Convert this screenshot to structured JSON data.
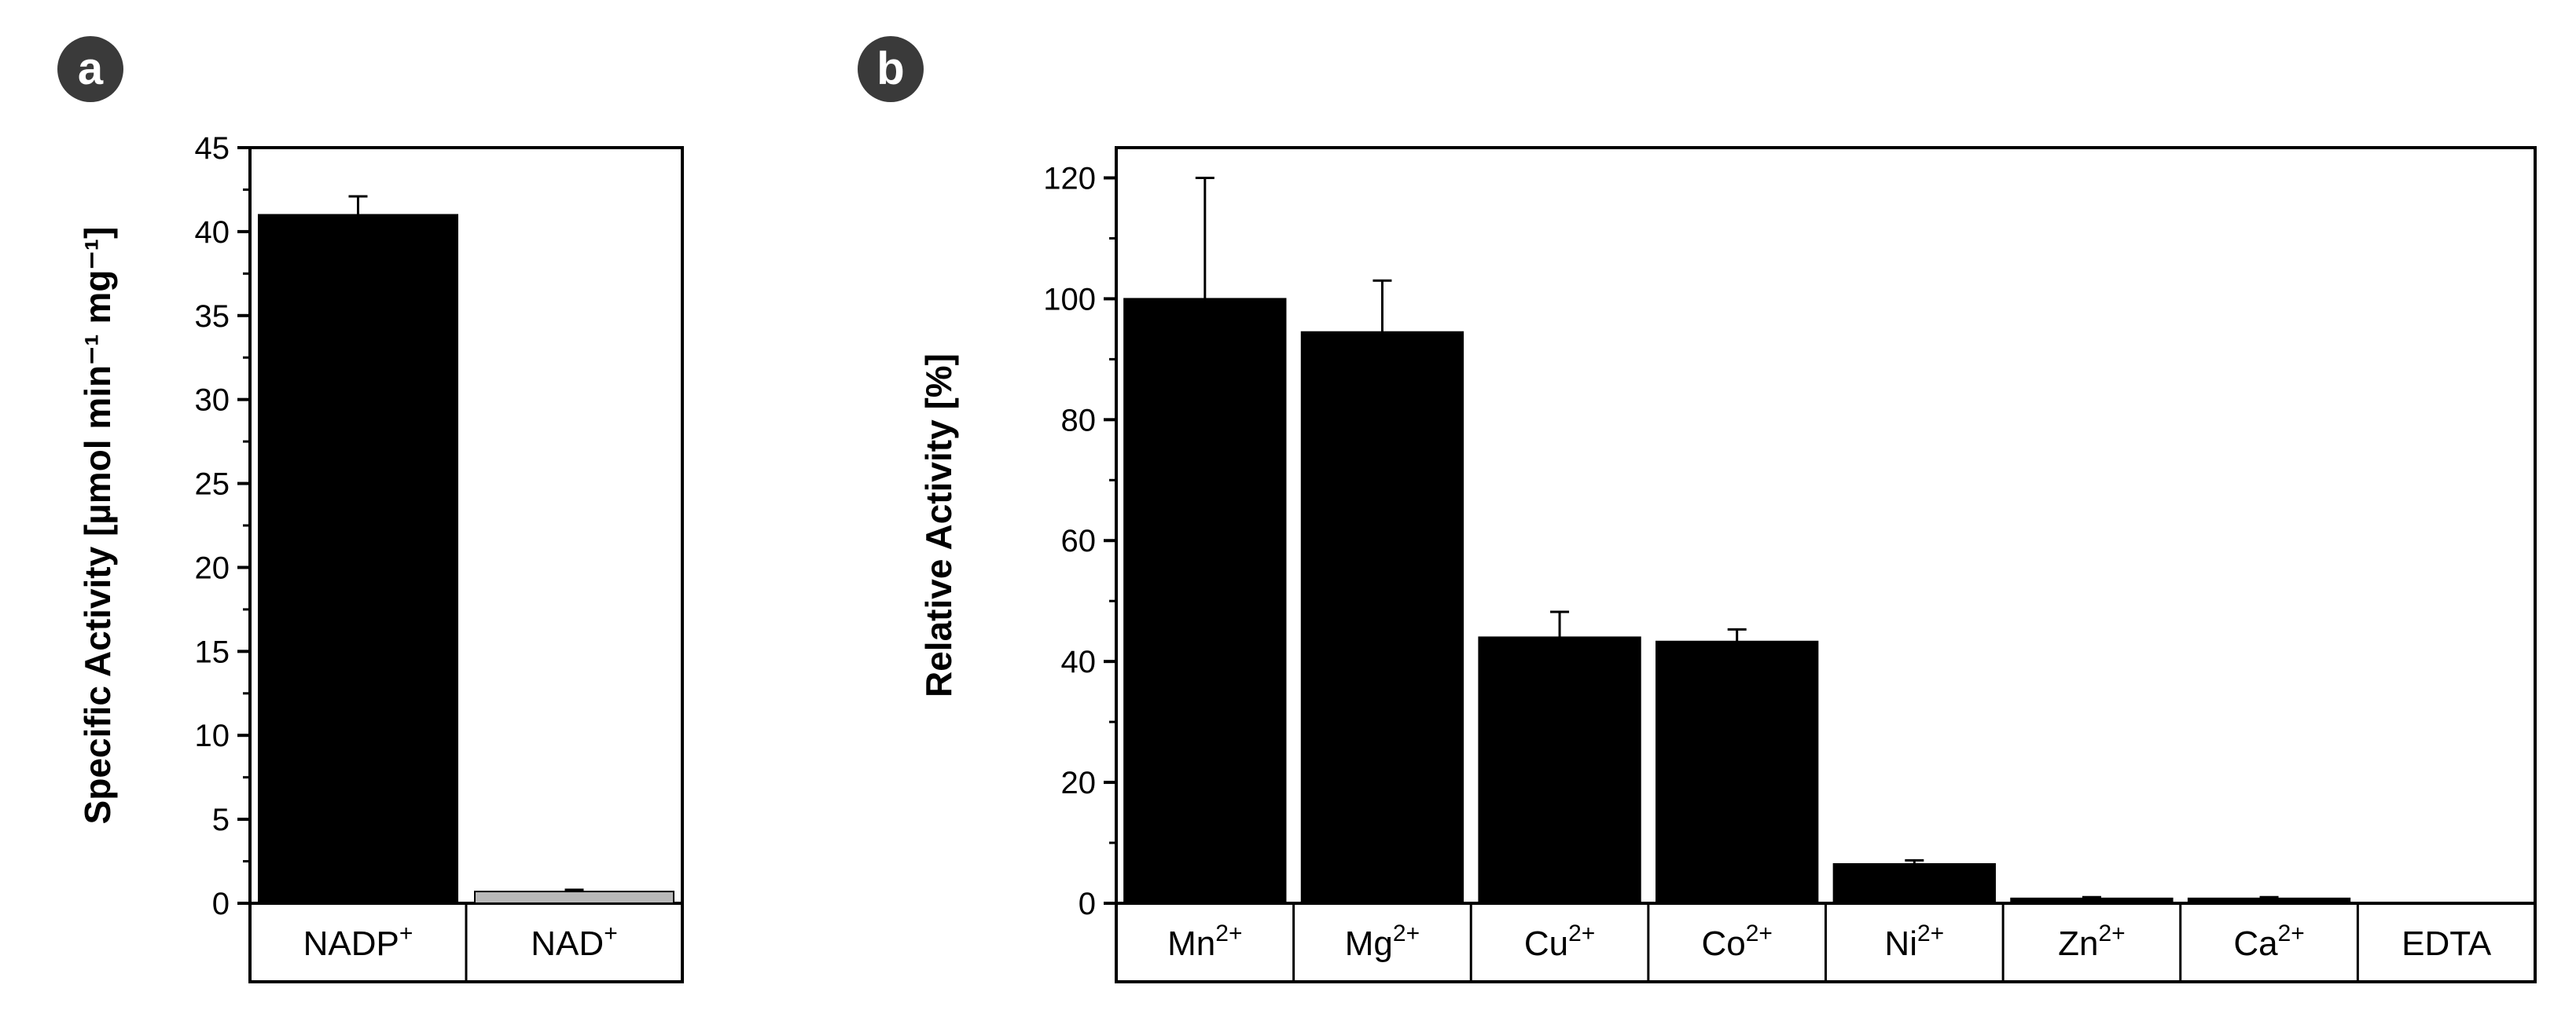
{
  "chart_data": [
    {
      "panel": "a",
      "type": "bar",
      "title": "",
      "xlabel": "",
      "ylabel": "Specific Activity [µmol min⁻¹ mg⁻¹]",
      "ylim": [
        0,
        45
      ],
      "yticks": [
        0,
        5,
        10,
        15,
        20,
        25,
        30,
        35,
        40,
        45
      ],
      "categories": [
        {
          "base": "NADP",
          "sup": "+"
        },
        {
          "base": "NAD",
          "sup": "+"
        }
      ],
      "values": [
        41.0,
        0.7
      ],
      "errors": [
        1.1,
        0.1
      ],
      "bar_colors": [
        "#000000",
        "#b8b8b8"
      ]
    },
    {
      "panel": "b",
      "type": "bar",
      "title": "",
      "xlabel": "",
      "ylabel": "Relative Activity [%]",
      "ylim": [
        0,
        125
      ],
      "yticks": [
        0,
        20,
        40,
        60,
        80,
        100,
        120
      ],
      "categories": [
        {
          "base": "Mn",
          "sup": "2+"
        },
        {
          "base": "Mg",
          "sup": "2+"
        },
        {
          "base": "Cu",
          "sup": "2+"
        },
        {
          "base": "Co",
          "sup": "2+"
        },
        {
          "base": "Ni",
          "sup": "2+"
        },
        {
          "base": "Zn",
          "sup": "2+"
        },
        {
          "base": "Ca",
          "sup": "2+"
        },
        {
          "base": "EDTA",
          "sup": ""
        }
      ],
      "values": [
        100,
        94.5,
        44,
        43.3,
        6.5,
        0.8,
        0.8,
        0
      ],
      "errors": [
        20,
        8.5,
        4.2,
        2,
        0.6,
        0.2,
        0.2,
        0
      ],
      "bar_colors": [
        "#000000"
      ]
    }
  ]
}
